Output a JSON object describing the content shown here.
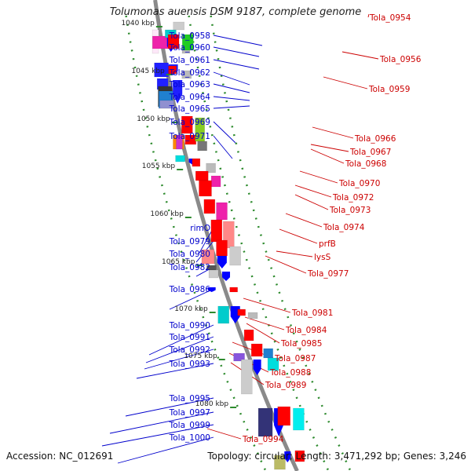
{
  "title": "Tolumonas auensis DSM 9187, complete genome",
  "footer": {
    "accession": "Accession: NC_012691",
    "topology": "Topology: circular; Length: 3,471,292 bp; Genes: 3,246"
  },
  "colors": {
    "backbone": "#8a8a8a",
    "dots": "#2e8b2e",
    "left_label": "#0000cc",
    "right_label": "#cc0000"
  },
  "kbp_ticks": [
    "1040 kbp",
    "1045 kbp",
    "1050 kbp",
    "1055 kbp",
    "1060 kbp",
    "1065 kbp",
    "1070 kbp",
    "1075 kbp",
    "1080 kbp"
  ],
  "left_genes": [
    "Tola_0958",
    "Tola_0960",
    "Tola_0961",
    "Tola_0962",
    "Tola_0963",
    "Tola_0964",
    "Tola_0965",
    "Tola_0969",
    "Tola_0971",
    "rimO",
    "Tola_0979",
    "Tola_0980",
    "Tola_0982",
    "Tola_0986",
    "Tola_0990",
    "Tola_0991",
    "Tola_0992",
    "Tola_0993",
    "Tola_0995",
    "Tola_0997",
    "Tola_0999",
    "Tola_1000"
  ],
  "right_genes": [
    "Tola_0954",
    "Tola_0956",
    "Tola_0959",
    "Tola_0966",
    "Tola_0967",
    "Tola_0968",
    "Tola_0970",
    "Tola_0972",
    "Tola_0973",
    "Tola_0974",
    "prfB",
    "lysS",
    "Tola_0977",
    "Tola_0981",
    "Tola_0984",
    "Tola_0985",
    "Tola_0987",
    "Tola_0988",
    "Tola_0989",
    "Tola_0994"
  ]
}
